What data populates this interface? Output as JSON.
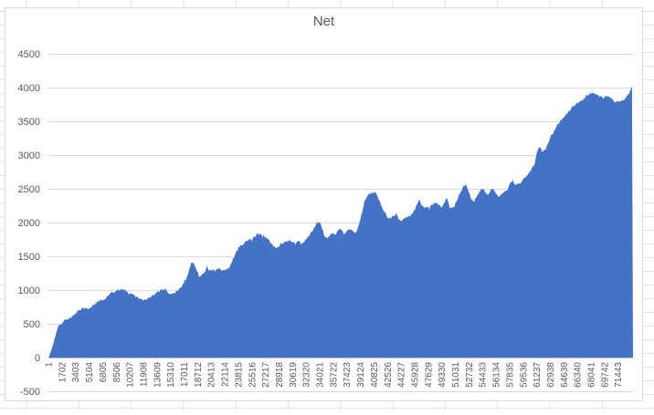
{
  "app": {
    "background_color": "#FFFFFF",
    "sheet_gridline_color": "#E4E4E4"
  },
  "chart": {
    "title": "Net",
    "title_color": "#595959",
    "frame_border_color": "#D9D9D9",
    "frame_fill_color": "#FFFFFF",
    "plot_gridline_color": "#D9D9D9",
    "axis_line_color": "#BDBDBD",
    "tick_label_color": "#595959",
    "area_fill_color": "#4472C4",
    "y_tick_labels": [
      "4500",
      "4000",
      "3500",
      "3000",
      "2500",
      "2000",
      "1500",
      "1000",
      "500",
      "0",
      "-500"
    ],
    "x_tick_labels": [
      "1",
      "1702",
      "3403",
      "5104",
      "6805",
      "8506",
      "10207",
      "11908",
      "13609",
      "15310",
      "17011",
      "18712",
      "20413",
      "22114",
      "23815",
      "25516",
      "27217",
      "28918",
      "30619",
      "32320",
      "34021",
      "35722",
      "37423",
      "39124",
      "40825",
      "42526",
      "44227",
      "45928",
      "47629",
      "49330",
      "51031",
      "52732",
      "54433",
      "56134",
      "57835",
      "59536",
      "61237",
      "62938",
      "64639",
      "66340",
      "68041",
      "69742",
      "71443"
    ]
  },
  "chart_data": {
    "type": "area",
    "title": "Net",
    "series": [
      {
        "name": "Net"
      }
    ],
    "xlabel": "",
    "ylabel": "",
    "ylim": [
      -500,
      4500
    ],
    "y_tick_step": 500,
    "x_first_tick": 1,
    "x_tick_step": 1701,
    "x_last_tick": 71443,
    "x_domain": [
      1,
      73300
    ],
    "grid": true,
    "legend": "none",
    "points": [
      [
        1,
        10
      ],
      [
        150,
        60
      ],
      [
        350,
        120
      ],
      [
        600,
        230
      ],
      [
        800,
        320
      ],
      [
        1050,
        420
      ],
      [
        1250,
        470
      ],
      [
        1500,
        500
      ],
      [
        1700,
        525
      ],
      [
        2050,
        555
      ],
      [
        2400,
        575
      ],
      [
        2750,
        600
      ],
      [
        3100,
        635
      ],
      [
        3450,
        665
      ],
      [
        3800,
        700
      ],
      [
        4150,
        730
      ],
      [
        4450,
        745
      ],
      [
        4800,
        715
      ],
      [
        5150,
        720
      ],
      [
        5500,
        770
      ],
      [
        5850,
        810
      ],
      [
        6200,
        835
      ],
      [
        6550,
        855
      ],
      [
        6900,
        860
      ],
      [
        7200,
        890
      ],
      [
        7550,
        925
      ],
      [
        7900,
        960
      ],
      [
        8250,
        985
      ],
      [
        8600,
        1000
      ],
      [
        8950,
        1010
      ],
      [
        9300,
        995
      ],
      [
        9650,
        975
      ],
      [
        10000,
        950
      ],
      [
        10300,
        940
      ],
      [
        10650,
        920
      ],
      [
        11000,
        900
      ],
      [
        11350,
        875
      ],
      [
        11700,
        860
      ],
      [
        12050,
        855
      ],
      [
        12400,
        880
      ],
      [
        12750,
        900
      ],
      [
        13100,
        925
      ],
      [
        13400,
        950
      ],
      [
        13750,
        985
      ],
      [
        14100,
        1005
      ],
      [
        14450,
        1010
      ],
      [
        14800,
        990
      ],
      [
        15150,
        955
      ],
      [
        15500,
        940
      ],
      [
        15850,
        960
      ],
      [
        16150,
        985
      ],
      [
        16500,
        1030
      ],
      [
        16850,
        1080
      ],
      [
        17200,
        1150
      ],
      [
        17550,
        1280
      ],
      [
        17900,
        1420
      ],
      [
        18250,
        1380
      ],
      [
        18600,
        1290
      ],
      [
        18900,
        1185
      ],
      [
        19250,
        1230
      ],
      [
        19600,
        1290
      ],
      [
        19950,
        1320
      ],
      [
        20300,
        1270
      ],
      [
        20650,
        1315
      ],
      [
        21000,
        1290
      ],
      [
        21350,
        1335
      ],
      [
        21700,
        1300
      ],
      [
        22000,
        1280
      ],
      [
        22350,
        1320
      ],
      [
        22700,
        1350
      ],
      [
        23050,
        1440
      ],
      [
        23400,
        1540
      ],
      [
        23750,
        1615
      ],
      [
        24100,
        1660
      ],
      [
        24450,
        1685
      ],
      [
        24800,
        1720
      ],
      [
        25100,
        1760
      ],
      [
        25450,
        1735
      ],
      [
        25800,
        1785
      ],
      [
        26150,
        1830
      ],
      [
        26500,
        1840
      ],
      [
        26850,
        1780
      ],
      [
        27200,
        1800
      ],
      [
        27550,
        1755
      ],
      [
        27850,
        1700
      ],
      [
        28200,
        1640
      ],
      [
        28550,
        1615
      ],
      [
        28900,
        1650
      ],
      [
        29250,
        1685
      ],
      [
        29600,
        1700
      ],
      [
        29950,
        1720
      ],
      [
        30300,
        1745
      ],
      [
        30600,
        1700
      ],
      [
        30950,
        1685
      ],
      [
        31300,
        1735
      ],
      [
        31650,
        1690
      ],
      [
        32000,
        1715
      ],
      [
        32350,
        1760
      ],
      [
        32700,
        1815
      ],
      [
        33050,
        1870
      ],
      [
        33400,
        1945
      ],
      [
        33700,
        2000
      ],
      [
        34050,
        1990
      ],
      [
        34400,
        1870
      ],
      [
        34750,
        1765
      ],
      [
        35100,
        1800
      ],
      [
        35450,
        1815
      ],
      [
        35800,
        1820
      ],
      [
        36150,
        1850
      ],
      [
        36450,
        1920
      ],
      [
        36800,
        1880
      ],
      [
        37150,
        1835
      ],
      [
        37500,
        1880
      ],
      [
        37850,
        1900
      ],
      [
        38200,
        1855
      ],
      [
        38550,
        1830
      ],
      [
        38900,
        1950
      ],
      [
        39250,
        2100
      ],
      [
        39550,
        2290
      ],
      [
        39900,
        2380
      ],
      [
        40250,
        2425
      ],
      [
        40600,
        2450
      ],
      [
        40950,
        2440
      ],
      [
        41300,
        2385
      ],
      [
        41650,
        2280
      ],
      [
        42000,
        2180
      ],
      [
        42300,
        2105
      ],
      [
        42650,
        2060
      ],
      [
        43000,
        2065
      ],
      [
        43350,
        2110
      ],
      [
        43700,
        2130
      ],
      [
        44050,
        2005
      ],
      [
        44400,
        2030
      ],
      [
        44750,
        2065
      ],
      [
        45100,
        2090
      ],
      [
        45400,
        2105
      ],
      [
        45750,
        2160
      ],
      [
        46100,
        2230
      ],
      [
        46450,
        2335
      ],
      [
        46800,
        2260
      ],
      [
        47150,
        2205
      ],
      [
        47500,
        2220
      ],
      [
        47850,
        2250
      ],
      [
        48150,
        2270
      ],
      [
        48500,
        2290
      ],
      [
        48850,
        2260
      ],
      [
        49200,
        2225
      ],
      [
        49550,
        2290
      ],
      [
        49900,
        2360
      ],
      [
        50250,
        2260
      ],
      [
        50600,
        2215
      ],
      [
        50900,
        2240
      ],
      [
        51250,
        2350
      ],
      [
        51600,
        2430
      ],
      [
        51950,
        2530
      ],
      [
        52300,
        2565
      ],
      [
        52650,
        2480
      ],
      [
        53000,
        2340
      ],
      [
        53350,
        2290
      ],
      [
        53700,
        2400
      ],
      [
        54000,
        2455
      ],
      [
        54350,
        2520
      ],
      [
        54700,
        2460
      ],
      [
        55050,
        2405
      ],
      [
        55400,
        2475
      ],
      [
        55750,
        2520
      ],
      [
        56100,
        2440
      ],
      [
        56450,
        2390
      ],
      [
        56800,
        2430
      ],
      [
        57100,
        2455
      ],
      [
        57450,
        2475
      ],
      [
        57800,
        2560
      ],
      [
        58150,
        2620
      ],
      [
        58500,
        2545
      ],
      [
        58850,
        2560
      ],
      [
        59200,
        2590
      ],
      [
        59550,
        2645
      ],
      [
        59900,
        2680
      ],
      [
        60200,
        2730
      ],
      [
        60550,
        2790
      ],
      [
        60900,
        2845
      ],
      [
        61250,
        3050
      ],
      [
        61600,
        3140
      ],
      [
        61950,
        3025
      ],
      [
        62300,
        3090
      ],
      [
        62650,
        3165
      ],
      [
        62950,
        3280
      ],
      [
        63300,
        3305
      ],
      [
        63650,
        3420
      ],
      [
        64000,
        3480
      ],
      [
        64350,
        3535
      ],
      [
        64700,
        3580
      ],
      [
        65050,
        3625
      ],
      [
        65400,
        3670
      ],
      [
        65750,
        3715
      ],
      [
        66100,
        3760
      ],
      [
        66400,
        3760
      ],
      [
        66750,
        3800
      ],
      [
        67100,
        3830
      ],
      [
        67450,
        3875
      ],
      [
        67800,
        3900
      ],
      [
        68150,
        3925
      ],
      [
        68500,
        3910
      ],
      [
        68850,
        3900
      ],
      [
        69150,
        3870
      ],
      [
        69500,
        3855
      ],
      [
        69850,
        3875
      ],
      [
        70200,
        3860
      ],
      [
        70550,
        3830
      ],
      [
        70900,
        3805
      ],
      [
        71250,
        3790
      ],
      [
        71600,
        3785
      ],
      [
        71900,
        3800
      ],
      [
        72250,
        3830
      ],
      [
        72600,
        3880
      ],
      [
        72950,
        3945
      ],
      [
        73300,
        4060
      ]
    ]
  }
}
